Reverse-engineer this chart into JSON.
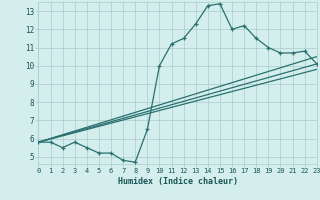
{
  "xlabel": "Humidex (Indice chaleur)",
  "bg_color": "#d4eeee",
  "grid_color": "#aacccc",
  "line_color": "#2a7070",
  "xlim": [
    0,
    23
  ],
  "ylim": [
    4.6,
    13.5
  ],
  "xticks": [
    0,
    1,
    2,
    3,
    4,
    5,
    6,
    7,
    8,
    9,
    10,
    11,
    12,
    13,
    14,
    15,
    16,
    17,
    18,
    19,
    20,
    21,
    22,
    23
  ],
  "yticks": [
    5,
    6,
    7,
    8,
    9,
    10,
    11,
    12,
    13
  ],
  "series1_x": [
    0,
    1,
    2,
    3,
    4,
    5,
    6,
    7,
    8,
    9,
    10,
    11,
    12,
    13,
    14,
    15,
    16,
    17,
    18,
    19,
    20,
    21,
    22,
    23
  ],
  "series1_y": [
    5.8,
    5.8,
    5.5,
    5.8,
    5.5,
    5.2,
    5.2,
    4.8,
    4.7,
    6.5,
    10.0,
    11.2,
    11.5,
    12.3,
    13.3,
    13.4,
    12.0,
    12.2,
    11.5,
    11.0,
    10.7,
    10.7,
    10.8,
    10.1
  ],
  "series2_x": [
    0,
    23
  ],
  "series2_y": [
    5.8,
    10.1
  ],
  "series3_x": [
    0,
    23
  ],
  "series3_y": [
    5.8,
    10.5
  ],
  "series4_x": [
    0,
    23
  ],
  "series4_y": [
    5.8,
    9.8
  ]
}
